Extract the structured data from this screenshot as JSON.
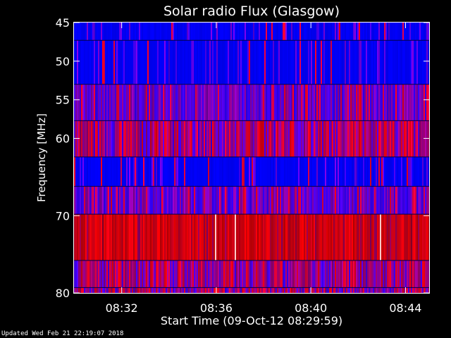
{
  "chart_data": {
    "type": "heatmap",
    "title": "Solar radio Flux (Glasgow)",
    "xlabel": "Start Time (09-Oct-12 08:29:59)",
    "ylabel": "Frequency [MHz]",
    "x_start": "08:29:59",
    "x_end": "08:45:00",
    "x_ticks": [
      "08:32",
      "08:36",
      "08:40",
      "08:44"
    ],
    "y_ticks": [
      45,
      50,
      55,
      60,
      70,
      80
    ],
    "ylim": [
      45,
      80
    ],
    "y_direction": "down",
    "colors": {
      "background": "#000000",
      "low": "#0000ff",
      "mid": "#7f007f",
      "high": "#ff0000",
      "peak": "#ffffff"
    },
    "bands": [
      {
        "from_mhz": 45.0,
        "to_mhz": 47.3,
        "level": "low"
      },
      {
        "from_mhz": 47.3,
        "to_mhz": 53.0,
        "level": "low"
      },
      {
        "from_mhz": 53.0,
        "to_mhz": 57.7,
        "level": "low-mid"
      },
      {
        "from_mhz": 57.7,
        "to_mhz": 62.4,
        "level": "mid"
      },
      {
        "from_mhz": 62.4,
        "to_mhz": 66.2,
        "level": "low"
      },
      {
        "from_mhz": 66.2,
        "to_mhz": 69.8,
        "level": "low-mid"
      },
      {
        "from_mhz": 69.8,
        "to_mhz": 75.8,
        "level": "high"
      },
      {
        "from_mhz": 75.8,
        "to_mhz": 79.3,
        "level": "mid"
      },
      {
        "from_mhz": 79.3,
        "to_mhz": 80.0,
        "level": "mid"
      }
    ]
  },
  "footer": {
    "updated": "Updated Wed Feb 21 22:19:07 2018"
  }
}
